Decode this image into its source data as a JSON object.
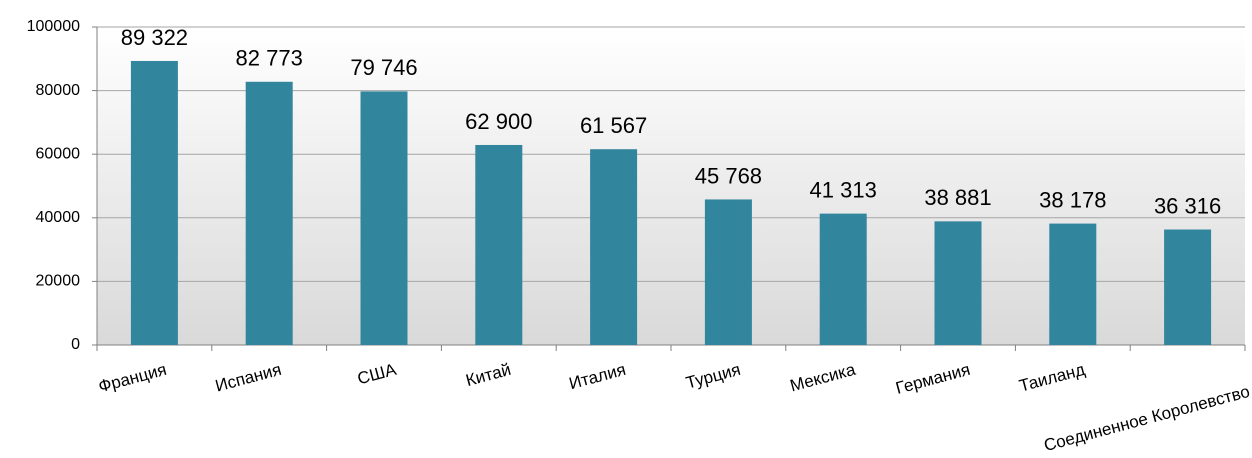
{
  "chart_data": {
    "type": "bar",
    "categories": [
      "Франция",
      "Испания",
      "США",
      "Китай",
      "Италия",
      "Турция",
      "Мексика",
      "Германия",
      "Таиланд",
      "Соединенное Королевство"
    ],
    "values": [
      89322,
      82773,
      79746,
      62900,
      61567,
      45768,
      41313,
      38881,
      38178,
      36316
    ],
    "value_labels": [
      "89 322",
      "82 773",
      "79 746",
      "62 900",
      "61 567",
      "45 768",
      "41 313",
      "38 881",
      "38 178",
      "36 316"
    ],
    "color": "#31859c",
    "ylim": [
      0,
      100000
    ],
    "yticks": [
      0,
      20000,
      40000,
      60000,
      80000,
      100000
    ],
    "grid": true
  }
}
